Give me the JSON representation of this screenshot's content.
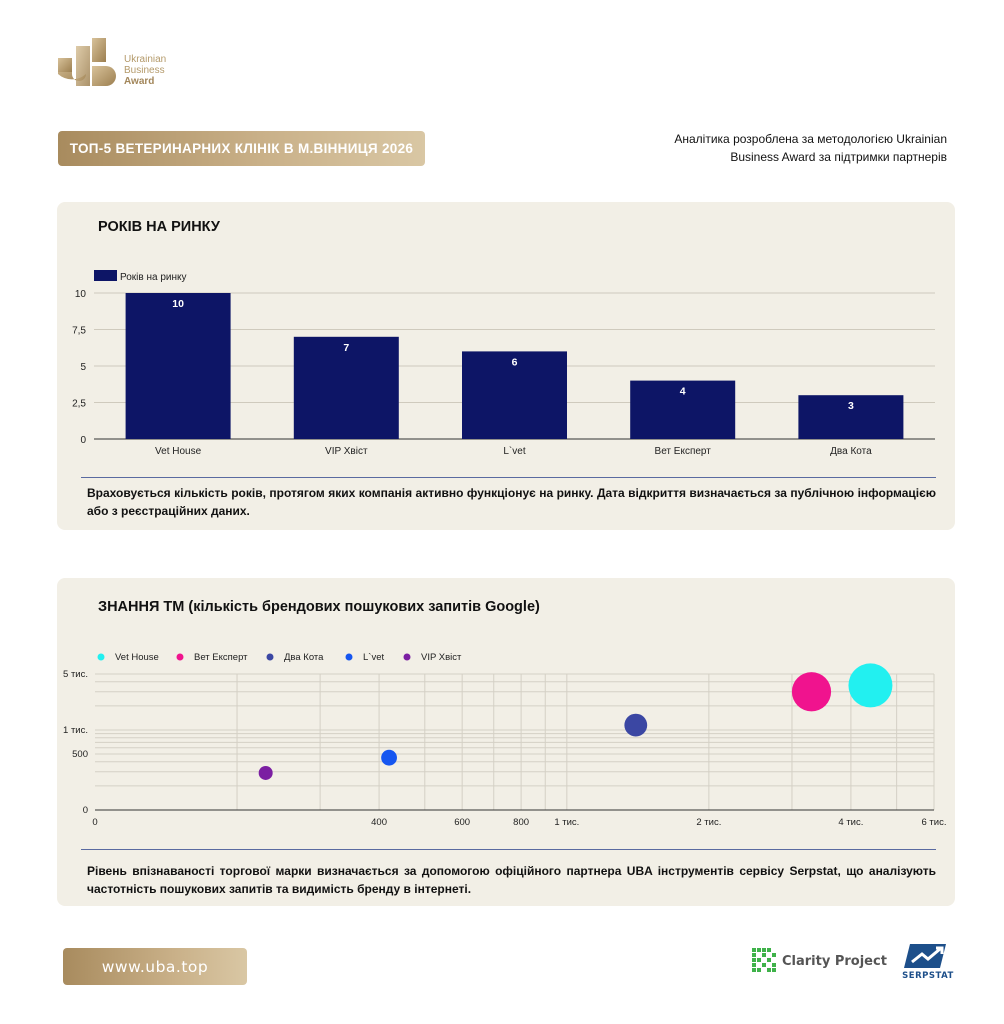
{
  "logo": {
    "line1": "Ukrainian",
    "line2": "Business",
    "line3": "Award"
  },
  "header": {
    "title": "ТОП-5 ВЕТЕРИНАРНИХ КЛІНІК В М.ВІННИЦЯ 2026",
    "methodology": "Аналітика розроблена за методологією Ukrainian Business Award за підтримки партнерів"
  },
  "colors": {
    "gold": "#b89c6c",
    "navy": "#0d1566",
    "card_bg": "#f2efe6"
  },
  "section1": {
    "title": "РОКІВ НА РИНКУ",
    "note": "Враховується кількість років, протягом яких компанія активно функціонує на ринку. Дата відкриття визначається за публічною інформацією або з реєстраційних даних."
  },
  "section2": {
    "title": "ЗНАННЯ ТМ (кількість брендових пошукових запитів Google)",
    "note": "Рівень впізнаваності торгової марки визначається за допомогою офіційного партнера UBA інструментів сервісу Serpstat, що аналізують частотність пошукових запитів та видимість бренду в інтернеті."
  },
  "chart_data": [
    {
      "type": "bar",
      "title": "РОКІВ НА РИНКУ",
      "categories": [
        "Vet House",
        "VIP Хвіст",
        "L`vet",
        "Вет Експерт",
        "Два Кота"
      ],
      "series": [
        {
          "name": "Років на ринку",
          "values": [
            10,
            7,
            6,
            4,
            3
          ],
          "color": "#0d1566"
        }
      ],
      "ylim": [
        0,
        10
      ],
      "yticks": [
        "0",
        "2,5",
        "5",
        "7,5",
        "10"
      ],
      "data_labels": [
        "10",
        "7",
        "6",
        "4",
        "3"
      ],
      "grid": true,
      "legend": "top-left"
    },
    {
      "type": "scatter",
      "title": "ЗНАННЯ ТМ (кількість брендових пошукових запитів Google)",
      "xscale": "log",
      "yscale": "log",
      "xticks": [
        "0",
        "400",
        "600",
        "800",
        "1 тис.",
        "2 тис.",
        "4 тис.",
        "6 тис."
      ],
      "yticks": [
        "0",
        "500",
        "1 тис.",
        "5 тис."
      ],
      "series": [
        {
          "name": "Vet House",
          "color": "#22f0f0",
          "x": 4400,
          "y": 3600
        },
        {
          "name": "Вет Експерт",
          "color": "#f0138e",
          "x": 3300,
          "y": 3000
        },
        {
          "name": "Два Кота",
          "color": "#3b47a3",
          "x": 1400,
          "y": 1150
        },
        {
          "name": "L`vet",
          "color": "#1656f0",
          "x": 420,
          "y": 450
        },
        {
          "name": "VIP Хвіст",
          "color": "#7b1fa2",
          "x": 230,
          "y": 290
        }
      ],
      "grid": true,
      "legend": "top-left"
    }
  ],
  "footer": {
    "site": "www.uba.top",
    "partner1": "Clarity Project",
    "partner2": "SERPSTAT"
  }
}
